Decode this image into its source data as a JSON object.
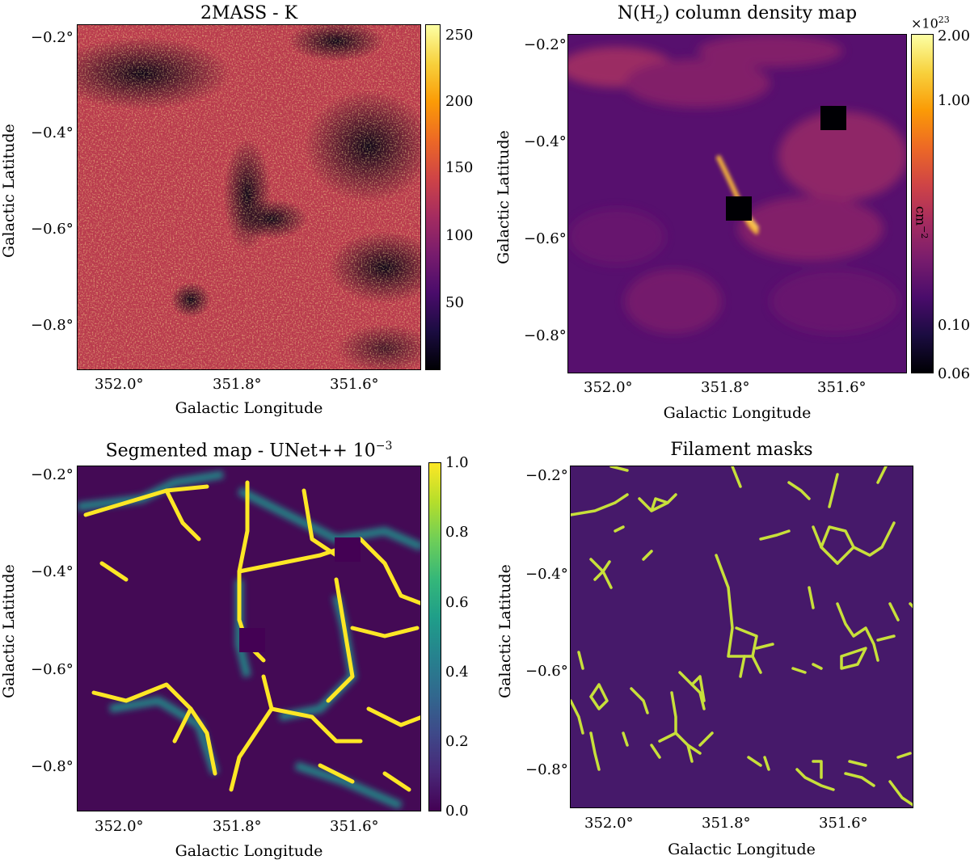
{
  "panels": {
    "p1": {
      "title": "2MASS - K",
      "xlabel": "Galactic Longitude",
      "ylabel": "Galactic Latitude",
      "xticks": [
        "352.0°",
        "351.8°",
        "351.6°"
      ],
      "yticks": [
        "−0.2°",
        "−0.4°",
        "−0.6°",
        "−0.8°"
      ],
      "colorbar_ticks": [
        "250",
        "200",
        "150",
        "100",
        "50"
      ],
      "colormap": "inferno"
    },
    "p2": {
      "title_main": "N(H",
      "title_sub": "2",
      "title_rest": ") column density map",
      "xlabel": "Galactic Longitude",
      "ylabel": "Galactic Latitude",
      "xticks": [
        "352.0°",
        "351.8°",
        "351.6°"
      ],
      "yticks": [
        "−0.2°",
        "−0.4°",
        "−0.6°",
        "−0.8°"
      ],
      "colorbar_ticks": [
        "2.00",
        "1.00",
        "0.10",
        "0.06"
      ],
      "colorbar_multiplier": "×10",
      "colorbar_multiplier_exp": "23",
      "colorbar_unit": "cm",
      "colorbar_unit_exp": "−2",
      "colormap": "inferno"
    },
    "p3": {
      "title_main": "Segmented map - UNet++ 10",
      "title_exp": "−3",
      "xlabel": "Galactic Longitude",
      "ylabel": "Galactic Latitude",
      "xticks": [
        "352.0°",
        "351.8°",
        "351.6°"
      ],
      "yticks": [
        "−0.2°",
        "−0.4°",
        "−0.6°",
        "−0.8°"
      ],
      "colorbar_ticks": [
        "1.0",
        "0.8",
        "0.6",
        "0.4",
        "0.2",
        "0.0"
      ],
      "colormap": "viridis"
    },
    "p4": {
      "title": "Filament masks",
      "xlabel": "Galactic Longitude",
      "ylabel": "Galactic Latitude",
      "xticks": [
        "352.0°",
        "351.8°",
        "351.6°"
      ],
      "yticks": [
        "−0.2°",
        "−0.4°",
        "−0.6°",
        "−0.8°"
      ],
      "background_color": "#46196a",
      "mask_color": "#c8e03a"
    }
  }
}
